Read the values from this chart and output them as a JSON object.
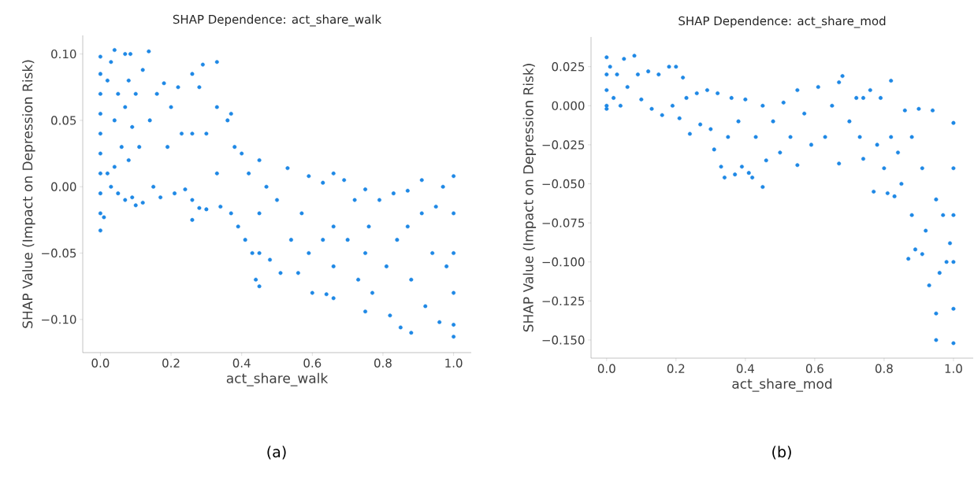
{
  "chart_data": [
    {
      "type": "scatter",
      "title": "SHAP Dependence: act_share_walk",
      "xlabel": "act_share_walk",
      "ylabel": "SHAP Value (Impact on Depression Risk)",
      "color": "#1e88e5",
      "marker": "circle",
      "xlim": [
        -0.05,
        1.05
      ],
      "ylim": [
        -0.125,
        0.114
      ],
      "xticks": [
        {
          "value": 0,
          "label": "0.0"
        },
        {
          "value": 0.2,
          "label": "0.2"
        },
        {
          "value": 0.4,
          "label": "0.4"
        },
        {
          "value": 0.6,
          "label": "0.6"
        },
        {
          "value": 0.8,
          "label": "0.8"
        },
        {
          "value": 1,
          "label": "1.0"
        }
      ],
      "yticks": [
        {
          "value": -0.1,
          "label": "−0.10"
        },
        {
          "value": -0.05,
          "label": "−0.05"
        },
        {
          "value": 0,
          "label": "0.00"
        },
        {
          "value": 0.05,
          "label": "0.05"
        },
        {
          "value": 0.1,
          "label": "0.10"
        }
      ],
      "annotations": [
        "(a)"
      ],
      "x": [
        0,
        0,
        0,
        0,
        0,
        0,
        0,
        0,
        0,
        0,
        0.01,
        0.02,
        0.02,
        0.03,
        0.03,
        0.04,
        0.04,
        0.04,
        0.05,
        0.05,
        0.06,
        0.07,
        0.07,
        0.07,
        0.08,
        0.08,
        0.085,
        0.09,
        0.09,
        0.1,
        0.1,
        0.11,
        0.12,
        0.12,
        0.137,
        0.14,
        0.15,
        0.16,
        0.17,
        0.18,
        0.19,
        0.2,
        0.21,
        0.22,
        0.23,
        0.24,
        0.26,
        0.26,
        0.26,
        0.26,
        0.28,
        0.28,
        0.29,
        0.3,
        0.3,
        0.33,
        0.33,
        0.33,
        0.34,
        0.36,
        0.37,
        0.37,
        0.38,
        0.39,
        0.4,
        0.41,
        0.42,
        0.43,
        0.44,
        0.45,
        0.45,
        0.45,
        0.45,
        0.47,
        0.48,
        0.5,
        0.51,
        0.53,
        0.54,
        0.56,
        0.57,
        0.59,
        0.59,
        0.6,
        0.63,
        0.63,
        0.64,
        0.66,
        0.66,
        0.66,
        0.66,
        0.69,
        0.7,
        0.72,
        0.73,
        0.75,
        0.75,
        0.75,
        0.76,
        0.77,
        0.79,
        0.81,
        0.82,
        0.83,
        0.84,
        0.85,
        0.87,
        0.87,
        0.88,
        0.88,
        0.91,
        0.91,
        0.92,
        0.94,
        0.95,
        0.96,
        0.97,
        0.98,
        1,
        1,
        1,
        1,
        1,
        1
      ],
      "values": [
        0.098,
        0.085,
        0.07,
        0.055,
        0.04,
        0.025,
        0.01,
        -0.005,
        -0.02,
        -0.033,
        -0.023,
        0.08,
        0.01,
        0.094,
        0.0,
        0.103,
        0.05,
        0.015,
        0.07,
        -0.005,
        0.03,
        0.1,
        0.06,
        -0.01,
        0.08,
        0.02,
        0.1,
        0.045,
        -0.008,
        0.07,
        -0.014,
        0.03,
        0.088,
        -0.012,
        0.102,
        0.05,
        0.0,
        0.07,
        -0.008,
        0.078,
        0.03,
        0.06,
        -0.005,
        0.075,
        0.04,
        -0.002,
        0.085,
        0.04,
        -0.01,
        -0.025,
        0.075,
        -0.016,
        0.092,
        0.04,
        -0.017,
        0.094,
        0.06,
        0.01,
        -0.015,
        0.05,
        0.055,
        -0.02,
        0.03,
        -0.03,
        0.025,
        -0.04,
        0.01,
        -0.05,
        -0.07,
        0.02,
        -0.02,
        -0.05,
        -0.075,
        0.0,
        -0.055,
        -0.01,
        -0.065,
        0.014,
        -0.04,
        -0.065,
        -0.02,
        0.008,
        -0.05,
        -0.08,
        0.003,
        -0.04,
        -0.081,
        0.01,
        -0.03,
        -0.06,
        -0.084,
        0.005,
        -0.04,
        -0.01,
        -0.07,
        -0.002,
        -0.05,
        -0.094,
        -0.03,
        -0.08,
        -0.01,
        -0.06,
        -0.097,
        -0.005,
        -0.04,
        -0.106,
        -0.003,
        -0.03,
        -0.07,
        -0.11,
        0.005,
        -0.02,
        -0.09,
        -0.05,
        -0.015,
        -0.102,
        0.0,
        -0.06,
        0.008,
        -0.02,
        -0.05,
        -0.08,
        -0.104,
        -0.113
      ]
    },
    {
      "type": "scatter",
      "title": "SHAP Dependence: act_share_mod",
      "xlabel": "act_share_mod",
      "ylabel": "SHAP Value (Impact on Depression Risk)",
      "color": "#1e88e5",
      "marker": "circle",
      "xlim": [
        -0.045,
        1.057
      ],
      "ylim": [
        -0.1616,
        0.044
      ],
      "xticks": [
        {
          "value": 0,
          "label": "0.0"
        },
        {
          "value": 0.2,
          "label": "0.2"
        },
        {
          "value": 0.4,
          "label": "0.4"
        },
        {
          "value": 0.6,
          "label": "0.6"
        },
        {
          "value": 0.8,
          "label": "0.8"
        },
        {
          "value": 1,
          "label": "1.0"
        }
      ],
      "yticks": [
        {
          "value": -0.15,
          "label": "−0.150"
        },
        {
          "value": -0.125,
          "label": "−0.125"
        },
        {
          "value": -0.1,
          "label": "−0.100"
        },
        {
          "value": -0.075,
          "label": "−0.075"
        },
        {
          "value": -0.05,
          "label": "−0.050"
        },
        {
          "value": -0.025,
          "label": "−0.025"
        },
        {
          "value": 0,
          "label": "0.000"
        },
        {
          "value": 0.025,
          "label": "0.025"
        }
      ],
      "annotations": [
        "(b)"
      ],
      "x": [
        0,
        0,
        0,
        0,
        0,
        0.01,
        0.02,
        0.03,
        0.04,
        0.05,
        0.06,
        0.08,
        0.09,
        0.1,
        0.12,
        0.13,
        0.15,
        0.16,
        0.18,
        0.19,
        0.2,
        0.21,
        0.22,
        0.23,
        0.24,
        0.26,
        0.27,
        0.29,
        0.3,
        0.31,
        0.32,
        0.33,
        0.34,
        0.35,
        0.36,
        0.37,
        0.38,
        0.39,
        0.4,
        0.41,
        0.42,
        0.43,
        0.45,
        0.45,
        0.46,
        0.48,
        0.5,
        0.51,
        0.53,
        0.55,
        0.55,
        0.57,
        0.59,
        0.61,
        0.63,
        0.65,
        0.67,
        0.67,
        0.68,
        0.7,
        0.72,
        0.73,
        0.74,
        0.74,
        0.76,
        0.77,
        0.78,
        0.79,
        0.8,
        0.81,
        0.82,
        0.82,
        0.83,
        0.84,
        0.85,
        0.86,
        0.87,
        0.88,
        0.88,
        0.89,
        0.9,
        0.91,
        0.91,
        0.92,
        0.93,
        0.94,
        0.95,
        0.95,
        0.95,
        0.96,
        0.97,
        0.98,
        0.99,
        1,
        1,
        1,
        1,
        1,
        1
      ],
      "values": [
        0.031,
        0.02,
        0.01,
        0.0,
        -0.002,
        0.025,
        0.005,
        0.02,
        0.0,
        0.03,
        0.012,
        0.032,
        0.02,
        0.004,
        0.022,
        -0.002,
        0.02,
        -0.006,
        0.025,
        0.0,
        0.025,
        -0.008,
        0.018,
        0.005,
        -0.018,
        0.008,
        -0.012,
        0.01,
        -0.015,
        -0.028,
        0.008,
        -0.039,
        -0.046,
        -0.02,
        0.005,
        -0.044,
        -0.01,
        -0.039,
        0.004,
        -0.043,
        -0.046,
        -0.02,
        -0.052,
        0.0,
        -0.035,
        -0.01,
        -0.03,
        0.002,
        -0.02,
        0.01,
        -0.038,
        -0.005,
        -0.025,
        0.012,
        -0.02,
        0.0,
        0.015,
        -0.037,
        0.019,
        -0.01,
        0.005,
        -0.02,
        0.005,
        -0.034,
        0.01,
        -0.055,
        -0.025,
        0.005,
        -0.04,
        -0.056,
        0.016,
        -0.02,
        -0.058,
        -0.03,
        -0.05,
        -0.003,
        -0.098,
        -0.02,
        -0.07,
        -0.092,
        -0.002,
        -0.04,
        -0.095,
        -0.08,
        -0.115,
        -0.003,
        -0.06,
        -0.133,
        -0.15,
        -0.107,
        -0.07,
        -0.1,
        -0.088,
        -0.011,
        -0.04,
        -0.07,
        -0.1,
        -0.13,
        -0.152
      ]
    }
  ]
}
